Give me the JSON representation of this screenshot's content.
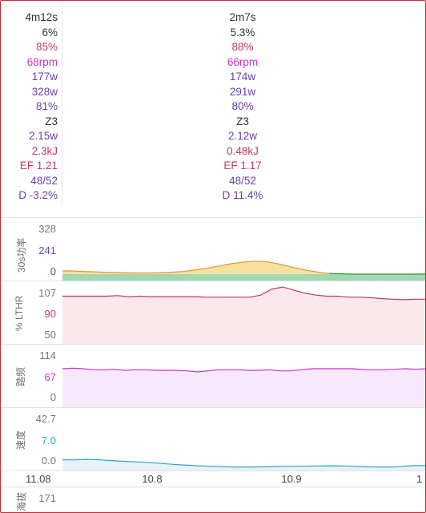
{
  "stats": {
    "rows": [
      {
        "c1": "4m12s",
        "c2": "2m7s",
        "color": "#333333"
      },
      {
        "c1": "6%",
        "c2": "5.3%",
        "color": "#333333"
      },
      {
        "c1": "85%",
        "c2": "88%",
        "color": "#c43a5e"
      },
      {
        "c1": "68rpm",
        "c2": "66rpm",
        "color": "#cf2fd2"
      },
      {
        "c1": "177w",
        "c2": "174w",
        "color": "#6a3fb0"
      },
      {
        "c1": "328w",
        "c2": "291w",
        "color": "#6a3fb0"
      },
      {
        "c1": "81%",
        "c2": "80%",
        "color": "#6a3fb0"
      },
      {
        "c1": "Z3",
        "c2": "Z3",
        "color": "#333333"
      },
      {
        "c1": "2.15w",
        "c2": "2.12w",
        "color": "#6a3fb0"
      },
      {
        "c1": "2.3kJ",
        "c2": "0.48kJ",
        "color": "#c43a5e"
      },
      {
        "c1": "EF 1.21",
        "c2": "EF 1.17",
        "color": "#c43a5e"
      },
      {
        "c1": "48/52",
        "c2": "48/52",
        "color": "#6a3fb0"
      },
      {
        "c1": "D -3.2%",
        "c2": "D 11.4%",
        "color": "#6a3fb0"
      }
    ]
  },
  "charts": {
    "power": {
      "label": "30s功率",
      "ticks": [
        {
          "text": "328",
          "color": "#777777"
        },
        {
          "text": "241",
          "color": "#6a3fb0"
        },
        {
          "text": "0",
          "color": "#555555"
        }
      ],
      "chart_data": {
        "type": "area",
        "series": [
          {
            "values": [
              22,
              20,
              17,
              14,
              11,
              9,
              8,
              8,
              9,
              12,
              18,
              28,
              40,
              55,
              70,
              80,
              85,
              80,
              65,
              45,
              28,
              14,
              5,
              2,
              0,
              0,
              0,
              0,
              0,
              0,
              1
            ]
          }
        ],
        "ylim": [
          0,
          328
        ]
      }
    },
    "lthr": {
      "label": "% LTHR",
      "ticks": [
        {
          "text": "107",
          "color": "#777777"
        },
        {
          "text": "90",
          "color": "#c43a5e"
        },
        {
          "text": "50",
          "color": "#777777"
        }
      ],
      "chart_data": {
        "type": "line",
        "series": [
          {
            "values": [
              97,
              97,
              97,
              97,
              97,
              97.5,
              96.5,
              97,
              96.5,
              96.5,
              96.5,
              96.5,
              96.5,
              96,
              96,
              96,
              96,
              96,
              98,
              104,
              106,
              103,
              100,
              98,
              97,
              97,
              96,
              96,
              95.5,
              94.5,
              94,
              93.5,
              94,
              94
            ]
          }
        ],
        "ylim": [
          50,
          110
        ]
      }
    },
    "cadence": {
      "label": "踏频",
      "ticks": [
        {
          "text": "114",
          "color": "#777777"
        },
        {
          "text": "67",
          "color": "#cf2fd2"
        },
        {
          "text": "0",
          "color": "#777777"
        }
      ],
      "chart_data": {
        "type": "line",
        "series": [
          {
            "values": [
              72,
              73,
              72,
              70,
              70,
              71,
              69,
              70,
              70,
              69,
              69,
              69,
              68,
              66,
              68,
              70,
              70,
              70,
              69,
              69,
              70,
              68,
              68,
              70,
              72,
              72,
              72,
              72,
              72,
              70,
              70,
              70,
              71,
              72,
              71,
              72
            ]
          }
        ],
        "ylim": [
          0,
          114
        ]
      }
    },
    "speed": {
      "label": "速度",
      "ticks": [
        {
          "text": "42.7",
          "color": "#777777"
        },
        {
          "text": "7.0",
          "color": "#2ea3d6"
        },
        {
          "text": "0.0",
          "color": "#777777"
        }
      ],
      "chart_data": {
        "type": "area",
        "series": [
          {
            "values": [
              7.5,
              7.5,
              7.8,
              7.6,
              7.0,
              6.5,
              6.2,
              5.8,
              5.2,
              4.6,
              4.0,
              3.6,
              3.2,
              2.9,
              2.6,
              2.5,
              2.5,
              2.6,
              2.8,
              3.0,
              3.0,
              3.1,
              3.2,
              3.3,
              3.2,
              3.0,
              2.6,
              2.5,
              2.5,
              3.0,
              3.4,
              3.5
            ]
          }
        ],
        "ylim": [
          0,
          42.7
        ]
      }
    },
    "elev": {
      "label": "海拔",
      "ticks": [
        {
          "text": "171",
          "color": "#777777"
        }
      ]
    }
  },
  "xaxis": {
    "ticks": [
      "11.08",
      "10.8",
      "10.9",
      "1"
    ]
  }
}
